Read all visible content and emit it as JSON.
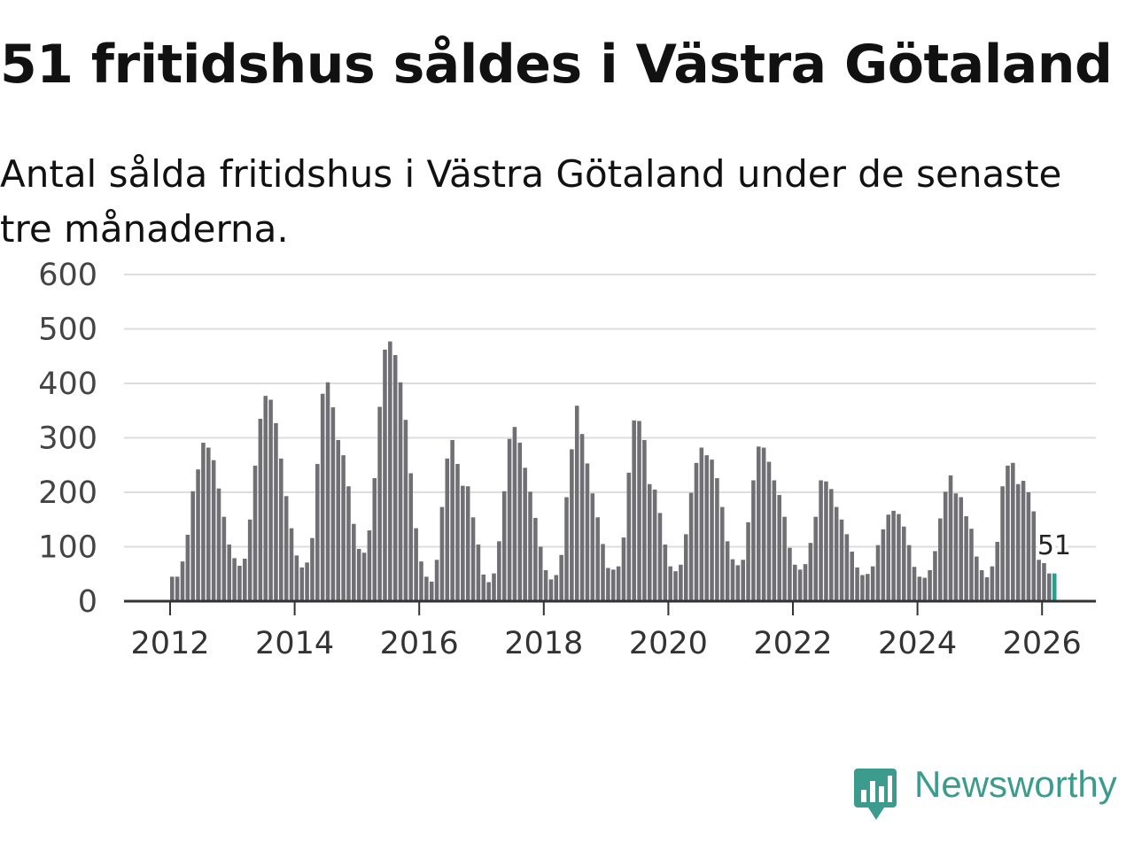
{
  "title": "51 fritidshus såldes i Västra Götaland",
  "subtitle": "Antal sålda fritidshus i Västra Götaland under de senaste tre månaderna.",
  "brand": {
    "name": "Newsworthy",
    "color": "#3b9c8d"
  },
  "colors": {
    "bar": "#6f6f74",
    "highlight": "#2a9d8f",
    "grid": "#dddddd",
    "axis": "#333333"
  },
  "chart_data": {
    "type": "bar",
    "title": "51 fritidshus såldes i Västra Götaland",
    "xlabel": "",
    "ylabel": "",
    "ylim": [
      0,
      600
    ],
    "yticks": [
      0,
      100,
      200,
      300,
      400,
      500,
      600
    ],
    "xticks": [
      "2012",
      "2014",
      "2016",
      "2018",
      "2020",
      "2022",
      "2024",
      "2026"
    ],
    "x_start": "2012-01",
    "frequency": "monthly",
    "grid": true,
    "highlight_label": "51",
    "values": [
      45,
      45,
      73,
      122,
      202,
      242,
      291,
      282,
      259,
      207,
      155,
      104,
      79,
      65,
      78,
      150,
      249,
      335,
      377,
      370,
      327,
      262,
      193,
      134,
      84,
      62,
      71,
      116,
      252,
      381,
      402,
      356,
      296,
      268,
      211,
      142,
      96,
      89,
      130,
      226,
      357,
      462,
      477,
      452,
      402,
      333,
      235,
      134,
      73,
      45,
      36,
      76,
      173,
      262,
      296,
      252,
      212,
      211,
      154,
      104,
      49,
      35,
      51,
      110,
      202,
      298,
      320,
      291,
      245,
      201,
      153,
      100,
      57,
      40,
      48,
      85,
      191,
      279,
      359,
      307,
      253,
      198,
      154,
      105,
      61,
      58,
      64,
      117,
      236,
      332,
      331,
      296,
      215,
      205,
      162,
      104,
      64,
      55,
      67,
      123,
      199,
      254,
      282,
      268,
      260,
      226,
      173,
      110,
      77,
      66,
      76,
      145,
      222,
      284,
      282,
      256,
      222,
      195,
      155,
      98,
      67,
      58,
      68,
      107,
      155,
      222,
      220,
      206,
      173,
      150,
      123,
      91,
      62,
      48,
      50,
      64,
      103,
      132,
      159,
      166,
      160,
      137,
      103,
      63,
      45,
      43,
      57,
      92,
      152,
      201,
      231,
      198,
      191,
      156,
      133,
      82,
      57,
      44,
      64,
      109,
      211,
      249,
      254,
      215,
      221,
      200,
      165,
      76,
      70,
      51
    ]
  }
}
